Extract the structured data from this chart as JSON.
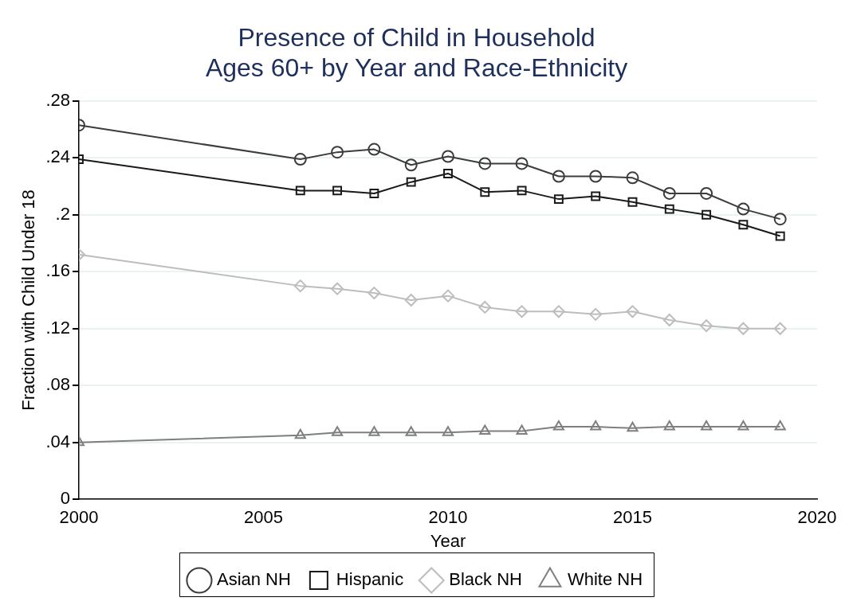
{
  "chart_data": {
    "type": "line",
    "title": "Presence of Child in Household\nAges 60+ by Year and Race-Ethnicity",
    "xlabel": "Year",
    "ylabel": "Fraction with Child Under 18",
    "x": [
      2000,
      2006,
      2007,
      2008,
      2009,
      2010,
      2011,
      2012,
      2013,
      2014,
      2015,
      2016,
      2017,
      2018,
      2019
    ],
    "series": [
      {
        "name": "Asian NH",
        "color": "#3c3c3c",
        "marker": "circle",
        "values": [
          0.263,
          0.239,
          0.244,
          0.246,
          0.235,
          0.241,
          0.236,
          0.236,
          0.227,
          0.227,
          0.226,
          0.215,
          0.215,
          0.204,
          0.197
        ]
      },
      {
        "name": "Hispanic",
        "color": "#1a1a1a",
        "marker": "square",
        "values": [
          0.239,
          0.217,
          0.217,
          0.215,
          0.223,
          0.229,
          0.216,
          0.217,
          0.211,
          0.213,
          0.209,
          0.204,
          0.2,
          0.193,
          0.185
        ]
      },
      {
        "name": "Black NH",
        "color": "#bdbdbd",
        "marker": "diamond",
        "values": [
          0.172,
          0.15,
          0.148,
          0.145,
          0.14,
          0.143,
          0.135,
          0.132,
          0.132,
          0.13,
          0.132,
          0.126,
          0.122,
          0.12,
          0.12
        ]
      },
      {
        "name": "White NH",
        "color": "#7f7f7f",
        "marker": "triangle",
        "values": [
          0.04,
          0.045,
          0.047,
          0.047,
          0.047,
          0.047,
          0.048,
          0.048,
          0.051,
          0.051,
          0.05,
          0.051,
          0.051,
          0.051,
          0.051
        ]
      }
    ],
    "xlim": [
      2000,
      2020
    ],
    "xticks": [
      2000,
      2005,
      2010,
      2015,
      2020
    ],
    "ylim": [
      0,
      0.28
    ],
    "yticks": [
      {
        "value": 0,
        "label": "0"
      },
      {
        "value": 0.04,
        "label": ".04"
      },
      {
        "value": 0.08,
        "label": ".08"
      },
      {
        "value": 0.12,
        "label": ".12"
      },
      {
        "value": 0.16,
        "label": ".16"
      },
      {
        "value": 0.2,
        "label": ".2"
      },
      {
        "value": 0.24,
        "label": ".24"
      },
      {
        "value": 0.28,
        "label": ".28"
      }
    ],
    "grid": "y",
    "legend": "bottom",
    "line_style": "solid"
  }
}
